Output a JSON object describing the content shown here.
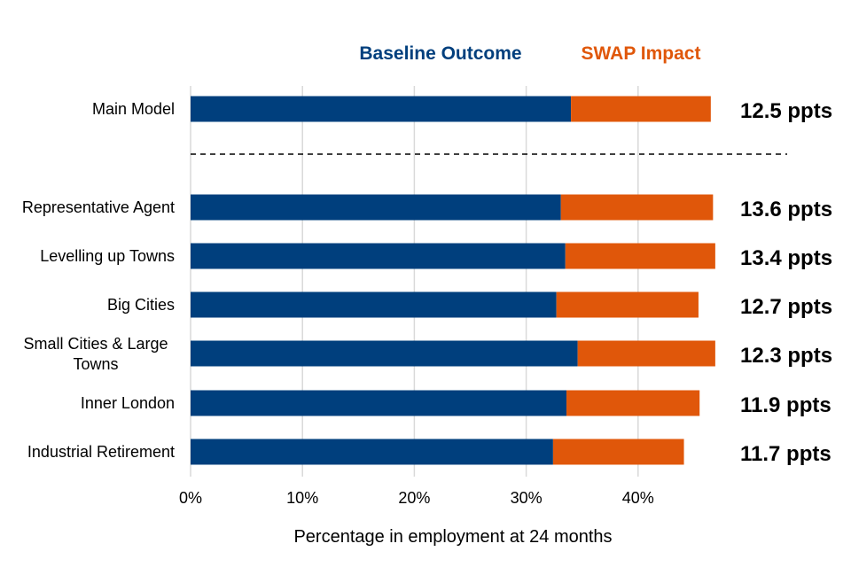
{
  "chart_data": {
    "type": "bar",
    "orientation": "horizontal",
    "stacked": true,
    "categories": [
      "Main Model",
      "Representative Agent",
      "Levelling up Towns",
      "Big Cities",
      "Small Cities & Large Towns",
      "Inner London",
      "Industrial Retirement"
    ],
    "series": [
      {
        "name": "Baseline Outcome",
        "color": "#003f7d",
        "values": [
          34.0,
          33.1,
          33.5,
          32.7,
          34.6,
          33.6,
          32.4
        ]
      },
      {
        "name": "SWAP Impact",
        "color": "#e0570a",
        "values": [
          12.5,
          13.6,
          13.4,
          12.7,
          12.3,
          11.9,
          11.7
        ]
      }
    ],
    "data_labels": [
      "12.5 ppts",
      "13.6 ppts",
      "13.4 ppts",
      "12.7 ppts",
      "12.3 ppts",
      "11.9 ppts",
      "11.7 ppts"
    ],
    "xlabel": "Percentage in employment at 24 months",
    "xlim": [
      0,
      50
    ],
    "xticks": [
      "0%",
      "10%",
      "20%",
      "30%",
      "40%"
    ],
    "grid": true,
    "legend_position": "top",
    "separator_after": "Main Model"
  }
}
